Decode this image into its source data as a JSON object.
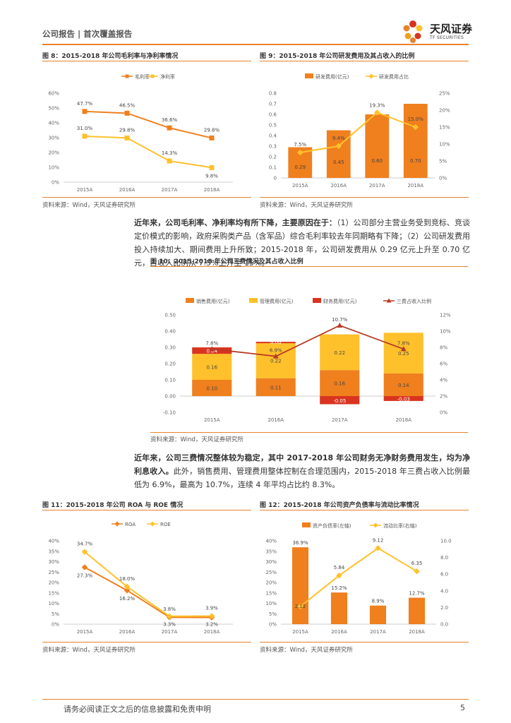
{
  "header": {
    "section": "公司报告 | 首次覆盖报告",
    "brand_name": "天风证券",
    "brand_en": "TF SECURITIES",
    "accent": "#e8822b"
  },
  "figures": {
    "fig8_title": "图 8：2015-2018 年公司毛利率与净利率情况",
    "fig9_title": "图 9：2015-2018 年公司研发费用及其占收入的比例",
    "fig10_title": "图 10：2015-2018 年公司三费情况及其占收入比例",
    "fig11_title": "图 11：2015-2018 年公司 ROA 与 ROE 情况",
    "fig12_title": "图 12：2015-2018 年公司资产负债率与流动比率情况",
    "source": "资料来源：Wind，天风证券研究所"
  },
  "paragraphs": {
    "p1_bold": "近年来，公司毛利率、净利率均有所下降，主要原因在于：",
    "p1_rest": "（1）公司部分主营业务受到竞标、竞谈定价模式的影响，政府采购类产品（含军品）综合毛利率较去年同期略有下降；（2）公司研发费用投入持续加大、期间费用上升所致；2015-2018 年，公司研发费用从 0.29 亿元上升至 0.70 亿元，占收入比例从 7.5%上升至 15%。",
    "p2_bold": "近年来，公司三费情况整体较为稳定，其中 2017-2018 年公司财务无净财务费用发生，均为净利息收入。",
    "p2_rest": "此外，销售费用、管理费用整体控制在合理范围内，2015-2018 年三费占收入比例最低为 6.9%，最高为 10.7%，连续 4 年平均占比约 8.3%。"
  },
  "footer": {
    "disclaimer": "请务必阅读正文之后的信息披露和免责申明",
    "page": "5"
  },
  "chart_data": [
    {
      "id": "fig8",
      "type": "line",
      "categories": [
        "2015A",
        "2016A",
        "2017A",
        "2018A"
      ],
      "series": [
        {
          "name": "毛利率",
          "values": [
            47.7,
            46.5,
            36.6,
            29.8
          ],
          "labels": [
            "47.7%",
            "46.5%",
            "36.6%",
            "29.8%"
          ],
          "color": "#f07f1e"
        },
        {
          "name": "净利率",
          "values": [
            31.0,
            29.8,
            14.3,
            9.8
          ],
          "labels": [
            "31.0%",
            "29.8%",
            "14.3%",
            "9.8%"
          ],
          "color": "#ffc12b"
        }
      ],
      "ylim": [
        0,
        60
      ],
      "yticks": [
        "0%",
        "10%",
        "20%",
        "30%",
        "40%",
        "50%",
        "60%"
      ]
    },
    {
      "id": "fig9",
      "type": "bar",
      "categories": [
        "2015A",
        "2016A",
        "2017A",
        "2018A"
      ],
      "series": [
        {
          "name": "研发费用(亿元)",
          "kind": "bar",
          "axis": "left",
          "values": [
            0.29,
            0.45,
            0.6,
            0.7
          ],
          "labels": [
            "0.29",
            "0.45",
            "0.60",
            "0.70"
          ],
          "color": "#f07f1e"
        },
        {
          "name": "研发费用占比",
          "kind": "line",
          "axis": "right",
          "values": [
            7.5,
            9.4,
            19.3,
            15.0
          ],
          "labels": [
            "7.5%",
            "9.4%",
            "19.3%",
            "15.0%"
          ],
          "color": "#ffc12b"
        }
      ],
      "ylim": [
        0,
        0.8
      ],
      "yticks": [
        "0",
        "0.1",
        "0.2",
        "0.3",
        "0.4",
        "0.5",
        "0.6",
        "0.7",
        "0.8"
      ],
      "y2lim": [
        0,
        25
      ],
      "y2ticks": [
        "0%",
        "5%",
        "10%",
        "15%",
        "20%",
        "25%"
      ]
    },
    {
      "id": "fig10",
      "type": "bar",
      "stacked": true,
      "categories": [
        "2015A",
        "2016A",
        "2017A",
        "2018A"
      ],
      "series": [
        {
          "name": "销售费用(亿元)",
          "kind": "bar",
          "axis": "left",
          "values": [
            0.1,
            0.11,
            0.16,
            0.14
          ],
          "labels": [
            "0.10",
            "0.11",
            "0.16",
            "0.14"
          ],
          "color": "#f07f1e"
        },
        {
          "name": "管理费用(亿元)",
          "kind": "bar",
          "axis": "left",
          "values": [
            0.16,
            0.22,
            0.22,
            0.25
          ],
          "labels": [
            "0.16",
            "0.22",
            "0.22",
            "0.25"
          ],
          "color": "#ffc12b"
        },
        {
          "name": "财务费用(亿元)",
          "kind": "bar",
          "axis": "left",
          "values": [
            0.04,
            0.0,
            -0.05,
            -0.03
          ],
          "labels": [
            "0.04",
            "0.00",
            "-0.05",
            "-0.03"
          ],
          "color": "#d8341f"
        },
        {
          "name": "三费占收入比例",
          "kind": "line",
          "axis": "right",
          "values": [
            7.8,
            6.9,
            10.7,
            7.8
          ],
          "labels": [
            "7.8%",
            "6.9%",
            "10.7%",
            "7.8%"
          ],
          "color": "#b93a26"
        }
      ],
      "ylim": [
        -0.1,
        0.5
      ],
      "yticks": [
        "-0.10",
        "0.00",
        "0.10",
        "0.20",
        "0.30",
        "0.40",
        "0.50"
      ],
      "y2lim": [
        0,
        12
      ],
      "y2ticks": [
        "0%",
        "2%",
        "4%",
        "6%",
        "8%",
        "10%",
        "12%"
      ]
    },
    {
      "id": "fig11",
      "type": "line",
      "categories": [
        "2015A",
        "2016A",
        "2017A",
        "2018A"
      ],
      "series": [
        {
          "name": "ROA",
          "values": [
            27.3,
            16.2,
            3.3,
            3.2
          ],
          "labels": [
            "27.3%",
            "16.2%",
            "3.3%",
            "3.2%"
          ],
          "color": "#f07f1e"
        },
        {
          "name": "ROE",
          "values": [
            34.7,
            18.0,
            3.8,
            3.9
          ],
          "labels": [
            "34.7%",
            "18.0%",
            "3.8%",
            "3.9%"
          ],
          "color": "#ffc12b"
        }
      ],
      "ylim": [
        0,
        40
      ],
      "yticks": [
        "0%",
        "5%",
        "10%",
        "15%",
        "20%",
        "25%",
        "30%",
        "35%",
        "40%"
      ]
    },
    {
      "id": "fig12",
      "type": "bar",
      "categories": [
        "2015A",
        "2016A",
        "2017A",
        "2018A"
      ],
      "series": [
        {
          "name": "资产负债率(左轴)",
          "kind": "bar",
          "axis": "left",
          "values": [
            36.9,
            15.2,
            8.9,
            12.7
          ],
          "labels": [
            "36.9%",
            "15.2%",
            "8.9%",
            "12.7%"
          ],
          "color": "#f07f1e"
        },
        {
          "name": "流动比率(右轴)",
          "kind": "line",
          "axis": "right",
          "values": [
            2.12,
            5.84,
            9.12,
            6.35
          ],
          "labels": [
            "2.12",
            "5.84",
            "9.12",
            "6.35"
          ],
          "color": "#ffc12b"
        }
      ],
      "ylim": [
        0,
        40
      ],
      "yticks": [
        "0%",
        "5%",
        "10%",
        "15%",
        "20%",
        "25%",
        "30%",
        "35%",
        "40%"
      ],
      "y2lim": [
        0,
        10
      ],
      "y2ticks": [
        "0.0",
        "2.0",
        "4.0",
        "6.0",
        "8.0",
        "10.0"
      ]
    }
  ]
}
